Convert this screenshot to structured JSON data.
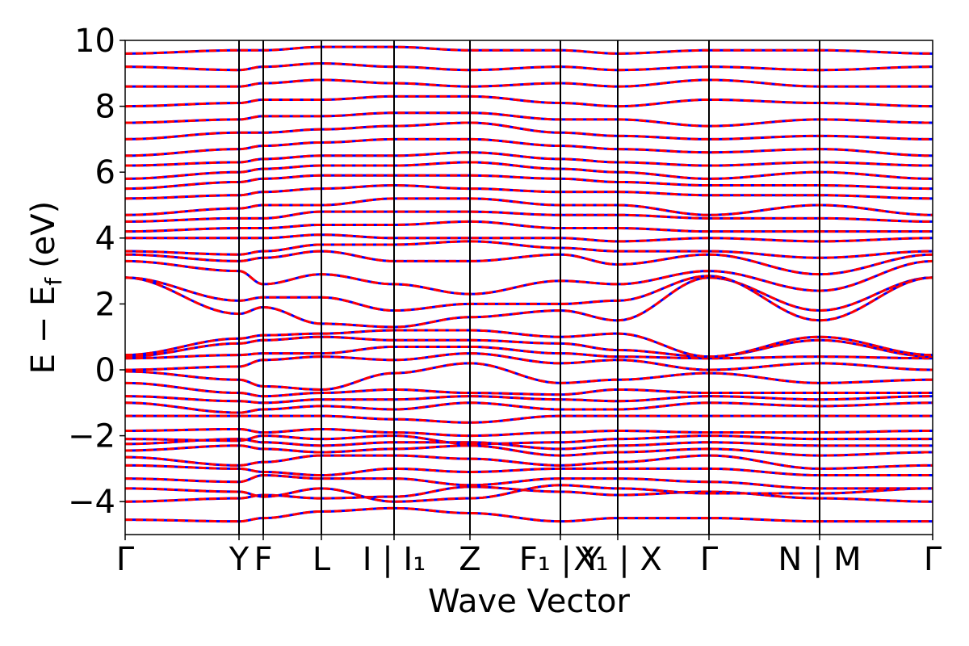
{
  "chart_data": {
    "type": "line",
    "title": "",
    "xlabel": "Wave Vector",
    "ylabel": "E − E_f (eV)",
    "ylabel_parts": {
      "main": "E − E",
      "sub": "f",
      "unit": "(eV)"
    },
    "ylim": [
      -5,
      10
    ],
    "yticks": [
      -4,
      -2,
      0,
      2,
      4,
      6,
      8,
      10
    ],
    "ytick_labels": [
      "−4",
      "−2",
      "0",
      "2",
      "4",
      "6",
      "8",
      "10"
    ],
    "grid": false,
    "legend": "none",
    "kpath_ticks": [
      {
        "label": "Γ",
        "x": 0.0
      },
      {
        "label": "Y",
        "x": 0.141
      },
      {
        "label": "F",
        "x": 0.171
      },
      {
        "label": "L",
        "x": 0.243
      },
      {
        "label": "I | I₁",
        "x": 0.333
      },
      {
        "label": "Z",
        "x": 0.427
      },
      {
        "label": "F₁ | Y",
        "x": 0.539
      },
      {
        "label": "X₁ | X",
        "x": 0.61
      },
      {
        "label": "Γ",
        "x": 0.723
      },
      {
        "label": "N | M",
        "x": 0.86
      },
      {
        "label": "Γ",
        "x": 1.0
      }
    ],
    "series_style": [
      {
        "color": "#ff0000",
        "style": "solid"
      },
      {
        "color": "#0000ff",
        "style": "dashed"
      }
    ],
    "bands": [
      {
        "e": [
          -4.55,
          -4.6,
          -4.5,
          -4.3,
          -4.2,
          -4.35,
          -4.6,
          -4.5,
          -4.5,
          -4.6,
          -4.6
        ]
      },
      {
        "e": [
          -4.0,
          -3.9,
          -3.8,
          -3.9,
          -3.85,
          -3.55,
          -3.7,
          -3.8,
          -3.7,
          -3.9,
          -4.0
        ]
      },
      {
        "e": [
          -3.6,
          -3.7,
          -3.85,
          -3.6,
          -4.0,
          -3.9,
          -3.5,
          -3.6,
          -3.75,
          -3.75,
          -3.6
        ]
      },
      {
        "e": [
          -3.3,
          -3.4,
          -3.2,
          -3.3,
          -3.3,
          -3.5,
          -3.3,
          -3.3,
          -3.4,
          -3.6,
          -3.6
        ]
      },
      {
        "e": [
          -2.9,
          -3.0,
          -3.1,
          -3.2,
          -3.0,
          -3.1,
          -3.0,
          -3.0,
          -3.0,
          -3.2,
          -3.2
        ]
      },
      {
        "e": [
          -2.65,
          -2.9,
          -2.8,
          -2.6,
          -2.6,
          -2.7,
          -2.9,
          -2.8,
          -2.6,
          -3.0,
          -2.9
        ]
      },
      {
        "e": [
          -2.45,
          -2.3,
          -2.4,
          -2.5,
          -2.4,
          -2.3,
          -2.6,
          -2.5,
          -2.4,
          -2.6,
          -2.5
        ]
      },
      {
        "e": [
          -2.25,
          -2.1,
          -2.2,
          -2.3,
          -2.2,
          -2.2,
          -2.4,
          -2.3,
          -2.2,
          -2.3,
          -2.3
        ]
      },
      {
        "e": [
          -2.1,
          -2.15,
          -2.0,
          -2.1,
          -2.0,
          -2.25,
          -2.2,
          -2.1,
          -2.0,
          -2.1,
          -2.1
        ]
      },
      {
        "e": [
          -1.85,
          -1.8,
          -1.9,
          -1.8,
          -1.9,
          -2.0,
          -1.9,
          -1.85,
          -1.9,
          -1.9,
          -1.85
        ]
      },
      {
        "e": [
          -1.4,
          -1.4,
          -1.4,
          -1.4,
          -1.5,
          -1.6,
          -1.4,
          -1.4,
          -1.4,
          -1.4,
          -1.4
        ]
      },
      {
        "e": [
          -1.0,
          -1.3,
          -1.2,
          -1.1,
          -1.2,
          -1.0,
          -1.2,
          -1.2,
          -1.0,
          -1.1,
          -1.0
        ]
      },
      {
        "e": [
          -0.8,
          -0.95,
          -1.0,
          -0.9,
          -0.9,
          -0.8,
          -0.9,
          -0.95,
          -0.8,
          -0.9,
          -0.8
        ]
      },
      {
        "e": [
          -0.4,
          -0.7,
          -0.8,
          -0.7,
          -0.6,
          -0.7,
          -0.75,
          -0.6,
          -0.7,
          -0.7,
          -0.7
        ]
      },
      {
        "e": [
          -0.05,
          -0.3,
          -0.5,
          -0.6,
          -0.1,
          0.2,
          -0.4,
          -0.3,
          -0.1,
          -0.4,
          -0.3
        ]
      },
      {
        "e": [
          0.0,
          0.1,
          0.3,
          0.4,
          0.3,
          0.5,
          0.2,
          0.3,
          0.0,
          0.2,
          0.0
        ]
      },
      {
        "e": [
          0.35,
          0.45,
          0.5,
          0.5,
          0.7,
          0.7,
          0.5,
          0.4,
          0.35,
          0.4,
          0.35
        ]
      },
      {
        "e": [
          0.4,
          0.8,
          0.9,
          1.0,
          0.9,
          0.9,
          0.8,
          0.6,
          0.4,
          0.9,
          0.4
        ]
      },
      {
        "e": [
          0.45,
          0.95,
          1.05,
          1.1,
          1.2,
          1.2,
          1.0,
          1.1,
          0.4,
          1.0,
          0.45
        ]
      },
      {
        "e": [
          2.8,
          1.7,
          1.9,
          1.4,
          1.3,
          1.6,
          1.8,
          1.5,
          2.8,
          1.8,
          2.8
        ]
      },
      {
        "e": [
          2.8,
          2.1,
          2.2,
          2.2,
          1.8,
          2.0,
          2.0,
          2.1,
          2.85,
          1.5,
          2.8
        ]
      },
      {
        "e": [
          3.3,
          3.0,
          2.6,
          2.9,
          2.6,
          2.3,
          2.7,
          2.6,
          3.0,
          2.4,
          3.3
        ]
      },
      {
        "e": [
          3.5,
          3.3,
          3.4,
          3.6,
          3.3,
          3.3,
          3.5,
          3.2,
          3.5,
          2.9,
          3.5
        ]
      },
      {
        "e": [
          3.6,
          3.5,
          3.6,
          3.8,
          3.8,
          3.9,
          3.7,
          3.6,
          3.6,
          3.4,
          3.6
        ]
      },
      {
        "e": [
          4.0,
          4.0,
          4.0,
          4.1,
          4.0,
          4.0,
          4.0,
          3.9,
          4.0,
          3.9,
          4.0
        ]
      },
      {
        "e": [
          4.2,
          4.3,
          4.3,
          4.4,
          4.4,
          4.5,
          4.3,
          4.3,
          4.2,
          4.2,
          4.2
        ]
      },
      {
        "e": [
          4.5,
          4.6,
          4.6,
          4.8,
          4.8,
          4.8,
          4.7,
          4.7,
          4.6,
          4.6,
          4.5
        ]
      },
      {
        "e": [
          4.7,
          4.9,
          5.0,
          5.0,
          5.2,
          5.2,
          5.0,
          5.0,
          4.7,
          5.0,
          4.7
        ]
      },
      {
        "e": [
          5.2,
          5.3,
          5.4,
          5.5,
          5.6,
          5.5,
          5.4,
          5.4,
          5.3,
          5.3,
          5.2
        ]
      },
      {
        "e": [
          5.5,
          5.7,
          5.8,
          5.9,
          5.9,
          5.9,
          5.8,
          5.7,
          5.6,
          5.6,
          5.5
        ]
      },
      {
        "e": [
          5.8,
          6.0,
          6.1,
          6.2,
          6.2,
          6.3,
          6.1,
          6.0,
          5.8,
          6.0,
          5.8
        ]
      },
      {
        "e": [
          6.2,
          6.3,
          6.4,
          6.5,
          6.5,
          6.6,
          6.4,
          6.3,
          6.2,
          6.3,
          6.2
        ]
      },
      {
        "e": [
          6.5,
          6.7,
          6.8,
          6.9,
          7.0,
          7.0,
          6.8,
          6.7,
          6.6,
          6.7,
          6.5
        ]
      },
      {
        "e": [
          7.0,
          7.2,
          7.2,
          7.3,
          7.4,
          7.5,
          7.2,
          7.1,
          7.0,
          7.1,
          7.0
        ]
      },
      {
        "e": [
          7.5,
          7.6,
          7.7,
          7.7,
          7.8,
          7.8,
          7.6,
          7.6,
          7.4,
          7.6,
          7.5
        ]
      },
      {
        "e": [
          8.0,
          8.1,
          8.2,
          8.2,
          8.3,
          8.3,
          8.1,
          8.0,
          8.2,
          8.1,
          8.0
        ]
      },
      {
        "e": [
          8.6,
          8.6,
          8.7,
          8.8,
          8.7,
          8.6,
          8.7,
          8.6,
          8.8,
          8.6,
          8.6
        ]
      },
      {
        "e": [
          9.2,
          9.1,
          9.2,
          9.3,
          9.2,
          9.1,
          9.2,
          9.1,
          9.2,
          9.1,
          9.2
        ]
      },
      {
        "e": [
          9.6,
          9.7,
          9.7,
          9.8,
          9.8,
          9.7,
          9.7,
          9.6,
          9.7,
          9.7,
          9.6
        ]
      }
    ]
  }
}
